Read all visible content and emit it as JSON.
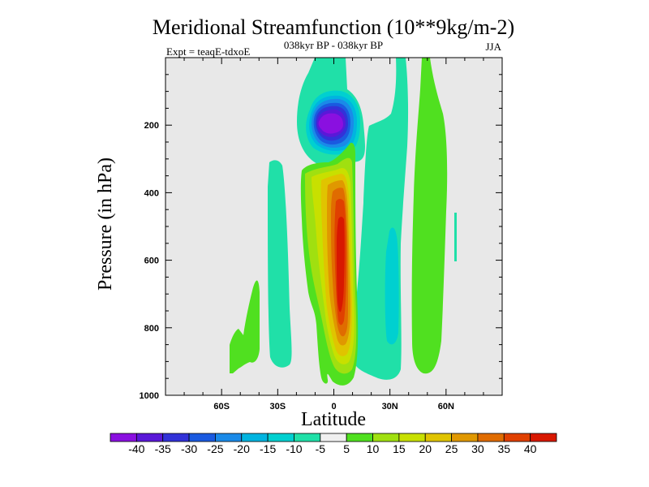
{
  "chart_data": {
    "type": "contour",
    "title": "Meridional Streamfunction (10**9kg/m-2)",
    "subtitle_center": "038kyr BP - 038kyr BP",
    "subtitle_left": "Expt = teaqE-tdxoE",
    "subtitle_right": "JJA",
    "xlabel": "Latitude",
    "ylabel": "Pressure (in hPa)",
    "xlim": [
      -90,
      90
    ],
    "ylim": [
      1000,
      0
    ],
    "xticks": [
      {
        "value": -60,
        "label": "60S"
      },
      {
        "value": -30,
        "label": "30S"
      },
      {
        "value": 0,
        "label": "0"
      },
      {
        "value": 30,
        "label": "30N"
      },
      {
        "value": 60,
        "label": "60N"
      }
    ],
    "yticks": [
      {
        "value": 200,
        "label": "200"
      },
      {
        "value": 400,
        "label": "400"
      },
      {
        "value": 600,
        "label": "600"
      },
      {
        "value": 800,
        "label": "800"
      },
      {
        "value": 1000,
        "label": "1000"
      }
    ],
    "levels": [
      -40,
      -35,
      -30,
      -25,
      -20,
      -15,
      -10,
      -5,
      5,
      10,
      15,
      20,
      25,
      30,
      35,
      40
    ],
    "colorbar_colors": [
      "#8a10e0",
      "#5a18d8",
      "#3232d8",
      "#1a5ae0",
      "#1a8ae8",
      "#00b4e0",
      "#00d0d0",
      "#20e0a8",
      "#f0f0f0",
      "#50e020",
      "#a0e010",
      "#c8e000",
      "#e0c400",
      "#e09800",
      "#e06c00",
      "#e04000",
      "#d81800"
    ],
    "background_color": "#e8e8e8",
    "features": [
      {
        "name": "southern-hemisphere-cell",
        "lat_range": [
          -45,
          -30
        ],
        "p_range": [
          60,
          980
        ],
        "value": -5
      },
      {
        "name": "upper-tropical-negative-cell",
        "lat_range": [
          -15,
          12
        ],
        "p_range": [
          0,
          270
        ],
        "value": -40
      },
      {
        "name": "tropical-positive-cell",
        "lat_range": [
          -10,
          10
        ],
        "p_range": [
          280,
          970
        ],
        "value": 40
      },
      {
        "name": "northern-subtropical-cell",
        "lat_range": [
          15,
          45
        ],
        "p_range": [
          0,
          900
        ],
        "value": -15
      },
      {
        "name": "northern-midlatitude-cell",
        "lat_range": [
          38,
          55
        ],
        "p_range": [
          0,
          930
        ],
        "value": 10
      }
    ]
  }
}
